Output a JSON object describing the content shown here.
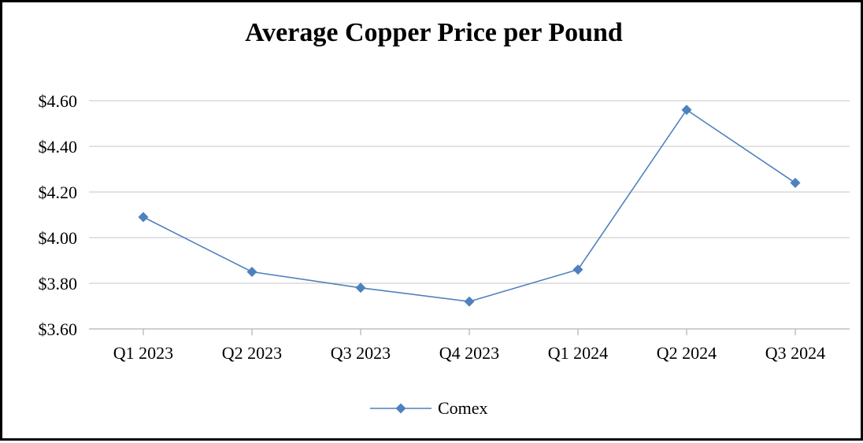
{
  "chart_data": {
    "type": "line",
    "title": "Average Copper Price per Pound",
    "categories": [
      "Q1 2023",
      "Q2 2023",
      "Q3 2023",
      "Q4 2023",
      "Q1 2024",
      "Q2 2024",
      "Q3 2024"
    ],
    "series": [
      {
        "name": "Comex",
        "values": [
          4.09,
          3.85,
          3.78,
          3.72,
          3.86,
          4.56,
          4.24
        ],
        "color": "#4F81BD",
        "marker": "diamond"
      }
    ],
    "ylim": [
      3.6,
      4.6
    ],
    "yticks": [
      3.6,
      3.8,
      4.0,
      4.2,
      4.4,
      4.6
    ],
    "ytick_labels": [
      "$3.60",
      "$3.80",
      "$4.00",
      "$4.20",
      "$4.40",
      "$4.60"
    ],
    "grid": true,
    "gridline_color": "#D9D9D9",
    "axis_color": "#BFBFBF",
    "legend_position": "bottom"
  }
}
